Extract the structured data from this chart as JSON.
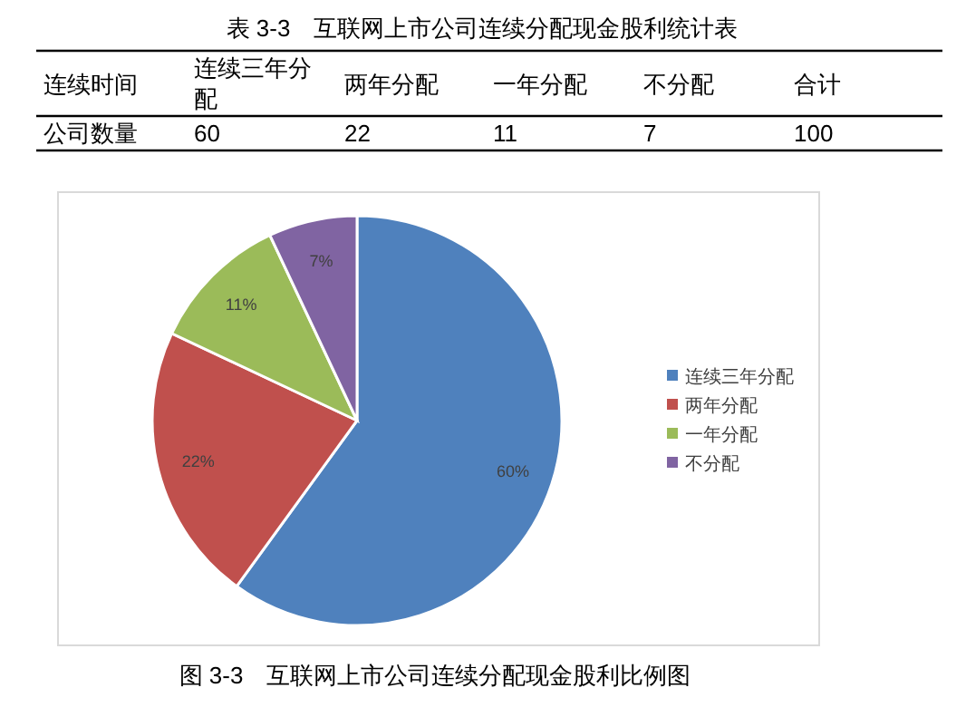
{
  "chart_data": {
    "type": "pie",
    "title": "图 3-3　互联网上市公司连续分配现金股利比例图",
    "categories": [
      "连续三年分配",
      "两年分配",
      "一年分配",
      "不分配"
    ],
    "values": [
      60,
      22,
      11,
      7
    ],
    "value_labels": [
      "60%",
      "22%",
      "11%",
      "7%"
    ],
    "colors": [
      "#4f81bd",
      "#c0504d",
      "#9bbb59",
      "#8064a2"
    ],
    "legend": "right",
    "annotations": [
      "表 3-3　互联网上市公司连续分配现金股利统计表",
      "连续时间",
      "公司数量",
      "60",
      "22",
      "11",
      "7",
      "合计",
      "100"
    ]
  }
}
